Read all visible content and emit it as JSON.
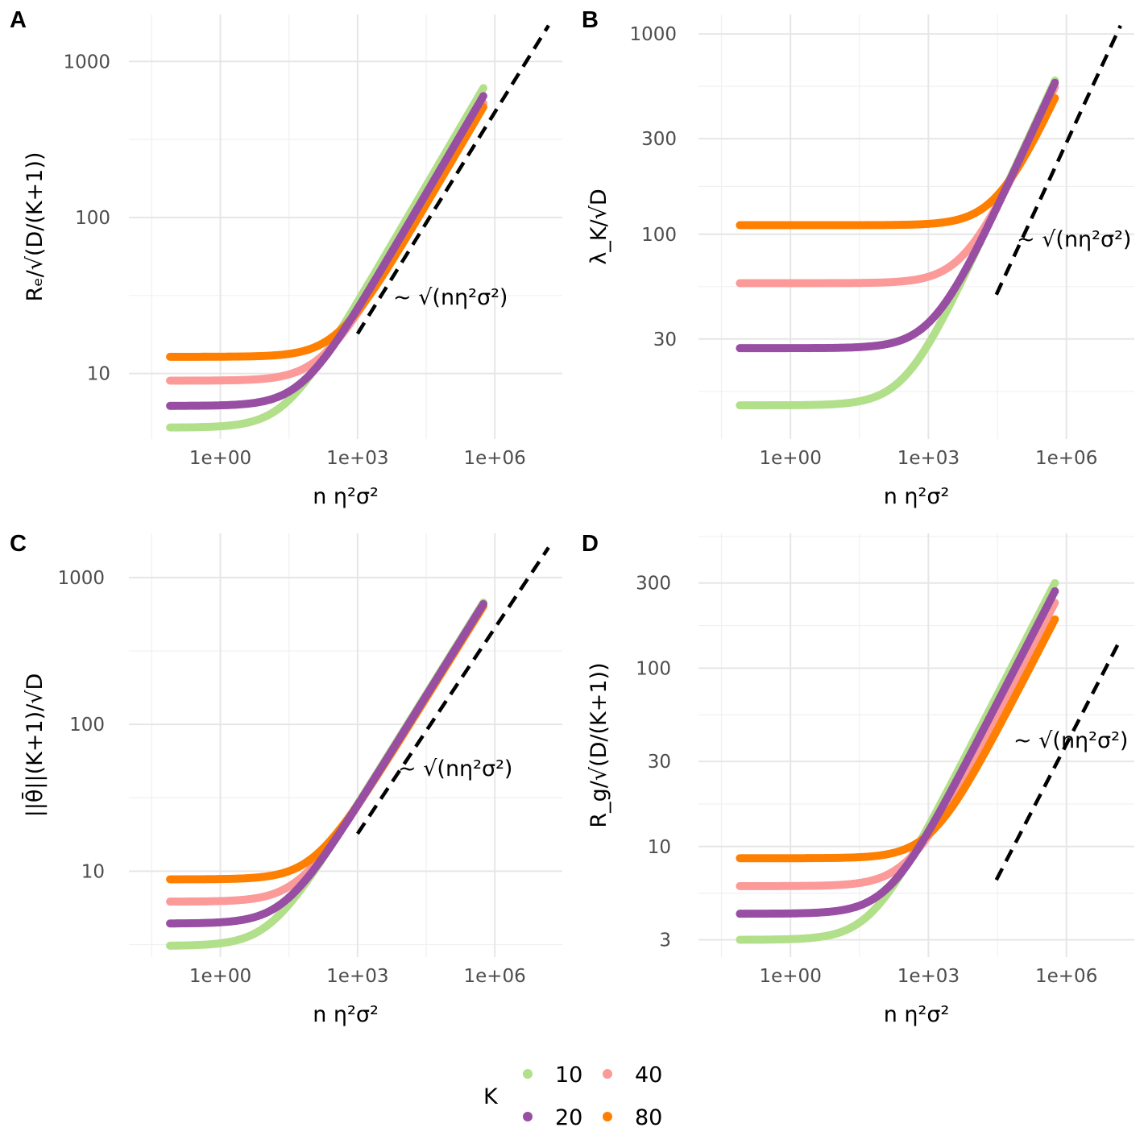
{
  "chart_data": [
    {
      "panel": "A",
      "type": "scatter",
      "xlabel": "n η²σ²",
      "ylabel": "Rₑ/√(D/(K+1))",
      "xscale": "log10",
      "yscale": "log10",
      "xlim": [
        0.01,
        30000000
      ],
      "ylim": [
        3.8,
        2000
      ],
      "xticks": [
        1,
        1000,
        1000000
      ],
      "xtick_labels": [
        "1e+00",
        "1e+03",
        "1e+06"
      ],
      "yticks": [
        10,
        100,
        1000
      ],
      "ytick_labels": [
        "10",
        "100",
        "1000"
      ],
      "annotation": "~ √(nη²σ²)",
      "reference_line": {
        "slope": 0.5,
        "from": [
          1000,
          18
        ],
        "to": [
          15000000,
          1700
        ]
      },
      "series": [
        {
          "name": "10",
          "plateau": 4.5,
          "slope_coef": 0.9
        },
        {
          "name": "20",
          "plateau": 6.2,
          "slope_coef": 0.8
        },
        {
          "name": "40",
          "plateau": 9.0,
          "slope_coef": 0.72
        },
        {
          "name": "80",
          "plateau": 12.8,
          "slope_coef": 0.68
        }
      ]
    },
    {
      "panel": "B",
      "type": "scatter",
      "xlabel": "n η²σ²",
      "ylabel": "λ_K/√D",
      "xscale": "log10",
      "yscale": "log10",
      "xlim": [
        0.01,
        30000000
      ],
      "ylim": [
        9.5,
        1250
      ],
      "xticks": [
        1,
        1000,
        1000000
      ],
      "xtick_labels": [
        "1e+00",
        "1e+03",
        "1e+06"
      ],
      "yticks": [
        30,
        100,
        300,
        1000
      ],
      "ytick_labels": [
        "30",
        "100",
        "300",
        "1000"
      ],
      "annotation": "~ √(nη²σ²)",
      "reference_line": {
        "slope": 0.5,
        "from": [
          30000,
          50
        ],
        "to": [
          15000000,
          1100
        ]
      },
      "series": [
        {
          "name": "10",
          "plateau": 14,
          "slope_coef": 0.78
        },
        {
          "name": "20",
          "plateau": 27,
          "slope_coef": 0.76
        },
        {
          "name": "40",
          "plateau": 57,
          "slope_coef": 0.72
        },
        {
          "name": "80",
          "plateau": 111,
          "slope_coef": 0.62
        }
      ]
    },
    {
      "panel": "C",
      "type": "scatter",
      "xlabel": "n η²σ²",
      "ylabel": "||θ̄||(K+1)/√D",
      "xscale": "log10",
      "yscale": "log10",
      "xlim": [
        0.01,
        30000000
      ],
      "ylim": [
        2.6,
        2000
      ],
      "xticks": [
        1,
        1000,
        1000000
      ],
      "xtick_labels": [
        "1e+00",
        "1e+03",
        "1e+06"
      ],
      "yticks": [
        10,
        100,
        1000
      ],
      "ytick_labels": [
        "10",
        "100",
        "1000"
      ],
      "annotation": "~ √(nη²σ²)",
      "reference_line": {
        "slope": 0.5,
        "from": [
          1000,
          18
        ],
        "to": [
          15000000,
          1600
        ]
      },
      "series": [
        {
          "name": "10",
          "plateau": 3.1,
          "slope_coef": 0.9
        },
        {
          "name": "20",
          "plateau": 4.4,
          "slope_coef": 0.88
        },
        {
          "name": "40",
          "plateau": 6.2,
          "slope_coef": 0.86
        },
        {
          "name": "80",
          "plateau": 8.8,
          "slope_coef": 0.85
        }
      ]
    },
    {
      "panel": "D",
      "type": "scatter",
      "xlabel": "n η²σ²",
      "ylabel": "R_g/√(D/(K+1))",
      "xscale": "log10",
      "yscale": "log10",
      "xlim": [
        0.01,
        30000000
      ],
      "ylim": [
        2.4,
        570
      ],
      "xticks": [
        1,
        1000,
        1000000
      ],
      "xtick_labels": [
        "1e+00",
        "1e+03",
        "1e+06"
      ],
      "yticks": [
        3,
        10,
        30,
        100,
        300
      ],
      "ytick_labels": [
        "3",
        "10",
        "30",
        "100",
        "300"
      ],
      "annotation": "~ √(nη²σ²)",
      "reference_line": {
        "slope": 0.5,
        "from": [
          30000,
          6.5
        ],
        "to": [
          15000000,
          145
        ]
      },
      "series": [
        {
          "name": "10",
          "plateau": 3.0,
          "slope_coef": 0.4
        },
        {
          "name": "20",
          "plateau": 4.2,
          "slope_coef": 0.36
        },
        {
          "name": "40",
          "plateau": 6.0,
          "slope_coef": 0.31
        },
        {
          "name": "80",
          "plateau": 8.6,
          "slope_coef": 0.25
        }
      ]
    }
  ],
  "legend": {
    "title": "K",
    "items": [
      {
        "label": "10",
        "color": "#b2df8a"
      },
      {
        "label": "40",
        "color": "#fb9a99"
      },
      {
        "label": "20",
        "color": "#984ea3"
      },
      {
        "label": "80",
        "color": "#ff7f00"
      }
    ]
  },
  "colors": {
    "10": "#b2df8a",
    "20": "#984ea3",
    "40": "#fb9a99",
    "80": "#ff7f00"
  }
}
